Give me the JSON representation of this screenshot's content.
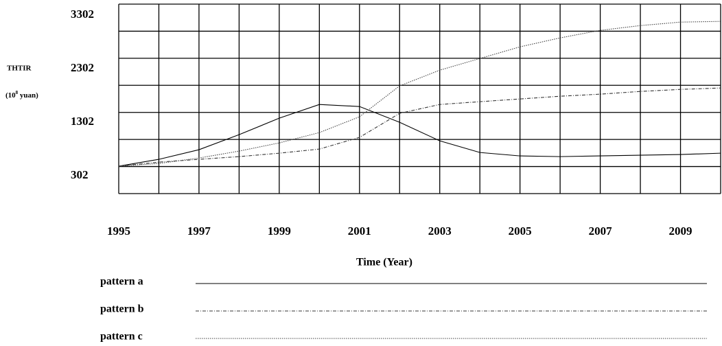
{
  "chart_data": {
    "type": "line",
    "ylabel": "THTIR",
    "ylabel_unit": [
      "(10",
      "8",
      " yuan)"
    ],
    "xlabel": "Time (Year)",
    "x": [
      1995,
      1996,
      1997,
      1998,
      1999,
      2000,
      2001,
      2002,
      2003,
      2004,
      2005,
      2006,
      2007,
      2008,
      2009,
      2010
    ],
    "xlim": [
      1995,
      2010
    ],
    "xticks": [
      1995,
      1997,
      1999,
      2001,
      2003,
      2005,
      2007,
      2009
    ],
    "ylim": [
      -30,
      3510
    ],
    "yticks": [
      302,
      1302,
      2302,
      3302
    ],
    "grid": true,
    "series": [
      {
        "name": "pattern a",
        "color": "#000000",
        "dash": "solid",
        "values": [
          482,
          610,
          790,
          1071,
          1379,
          1635,
          1597,
          1302,
          956,
          738,
          674,
          661,
          674,
          687,
          700,
          725
        ]
      },
      {
        "name": "pattern b",
        "color": "#333333",
        "dash": "dashdot",
        "values": [
          482,
          558,
          610,
          661,
          725,
          802,
          1020,
          1469,
          1635,
          1687,
          1738,
          1789,
          1828,
          1879,
          1917,
          1943
        ]
      },
      {
        "name": "pattern c",
        "color": "#444444",
        "dash": "dotted",
        "values": [
          482,
          533,
          635,
          764,
          917,
          1110,
          1405,
          1982,
          2276,
          2494,
          2712,
          2879,
          3020,
          3109,
          3174,
          3187
        ]
      }
    ]
  }
}
